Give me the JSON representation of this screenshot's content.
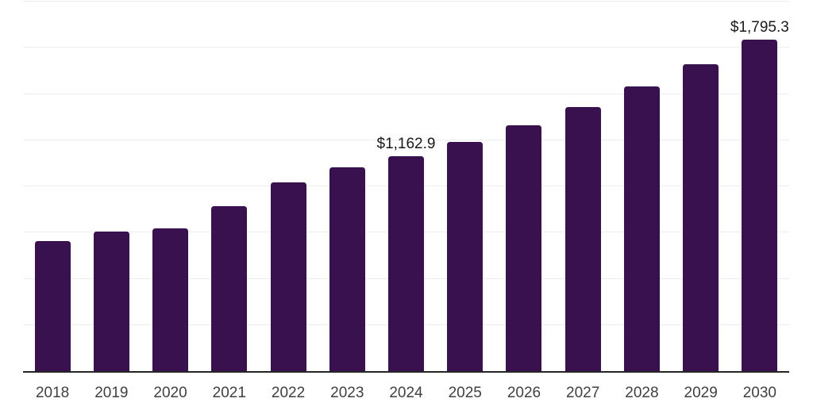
{
  "chart_data": {
    "type": "bar",
    "title": "",
    "xlabel": "",
    "ylabel": "",
    "categories": [
      "2018",
      "2019",
      "2020",
      "2021",
      "2022",
      "2023",
      "2024",
      "2025",
      "2026",
      "2027",
      "2028",
      "2029",
      "2030"
    ],
    "values": [
      705,
      756,
      771,
      892,
      1021,
      1104,
      1162.9,
      1240,
      1329,
      1429,
      1540,
      1663,
      1795.3
    ],
    "data_labels": [
      {
        "category": "2024",
        "text": "$1,162.9"
      },
      {
        "category": "2030",
        "text": "$1,795.3"
      }
    ],
    "ylim": [
      0,
      2000
    ],
    "gridline_step": 250,
    "grid": true,
    "legend_position": "none",
    "y_tick_labels_visible": false,
    "colors": {
      "bar": "#39114f",
      "axis_line": "#262626",
      "gridline": "#ededed",
      "tick_label": "#404040",
      "data_label": "#1a1a1a",
      "background": "#ffffff"
    }
  }
}
